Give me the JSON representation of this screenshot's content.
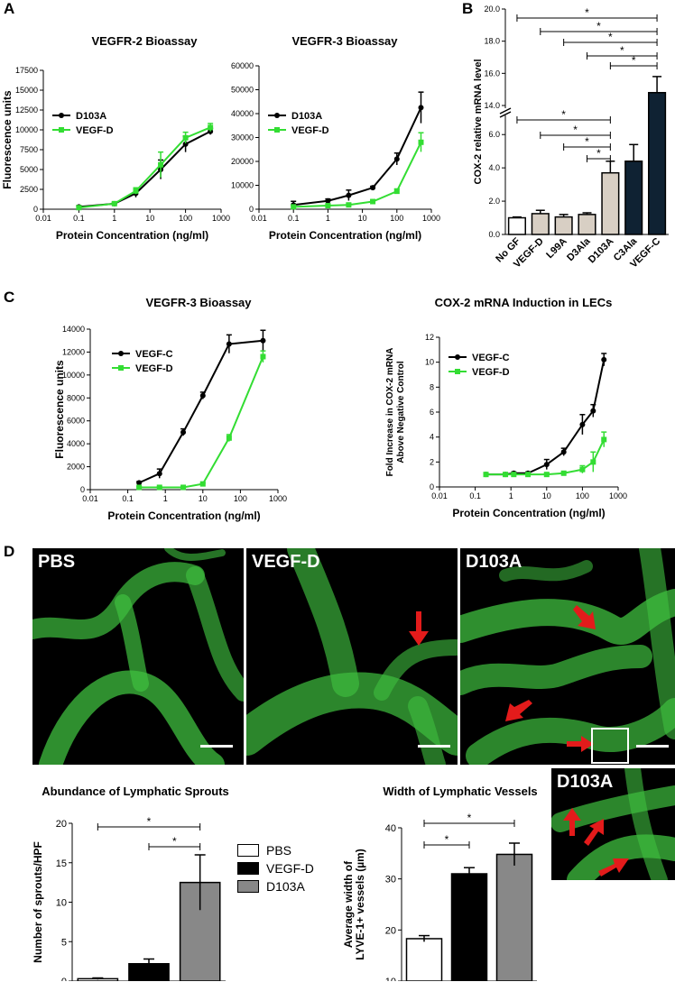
{
  "panel_labels": {
    "a": "A",
    "b": "B",
    "c": "C",
    "d": "D"
  },
  "chart_data": [
    {
      "id": "a1",
      "type": "line",
      "title": "VEGFR-2 Bioassay",
      "xlabel": "Protein Concentration (ng/ml)",
      "ylabel": "Fluorescence units",
      "xscale": "log",
      "xlim": [
        0.01,
        1000
      ],
      "ylim": [
        0,
        17500
      ],
      "xticks": [
        "0.01",
        "0.1",
        "1",
        "10",
        "100",
        "1000"
      ],
      "yticks": [
        "0",
        "2500",
        "5000",
        "7500",
        "10000",
        "12500",
        "15000",
        "17500"
      ],
      "legend": "top-left",
      "series": [
        {
          "name": "D103A",
          "color": "#000000",
          "marker": "circle",
          "x": [
            0.1,
            1,
            4,
            20,
            100,
            500
          ],
          "y": [
            300,
            700,
            2000,
            5000,
            8200,
            9800
          ],
          "err": [
            150,
            150,
            500,
            1200,
            1000,
            400
          ]
        },
        {
          "name": "VEGF-D",
          "color": "#33dd33",
          "marker": "square",
          "x": [
            0.1,
            1,
            4,
            20,
            100,
            500
          ],
          "y": [
            200,
            700,
            2300,
            5600,
            9000,
            10300
          ],
          "err": [
            100,
            150,
            400,
            1600,
            700,
            500
          ]
        }
      ]
    },
    {
      "id": "a2",
      "type": "line",
      "title": "VEGFR-3 Bioassay",
      "xlabel": "Protein Concentration (ng/ml)",
      "ylabel": "",
      "xscale": "log",
      "xlim": [
        0.01,
        1000
      ],
      "ylim": [
        0,
        60000
      ],
      "xticks": [
        "0.01",
        "0.1",
        "1",
        "10",
        "100",
        "1000"
      ],
      "yticks": [
        "0",
        "10000",
        "20000",
        "30000",
        "40000",
        "50000",
        "60000"
      ],
      "legend": "top-left",
      "series": [
        {
          "name": "D103A",
          "color": "#000000",
          "marker": "circle",
          "x": [
            0.1,
            1,
            4,
            20,
            100,
            500
          ],
          "y": [
            1800,
            3500,
            5800,
            9000,
            21000,
            42500
          ],
          "err": [
            1500,
            800,
            2200,
            600,
            2500,
            6500
          ]
        },
        {
          "name": "VEGF-D",
          "color": "#33dd33",
          "marker": "square",
          "x": [
            0.1,
            1,
            4,
            20,
            100,
            500
          ],
          "y": [
            1000,
            1500,
            1800,
            3200,
            7500,
            28000
          ],
          "err": [
            500,
            500,
            600,
            500,
            1000,
            4000
          ]
        }
      ]
    },
    {
      "id": "b",
      "type": "bar",
      "title": "",
      "ylabel": "COX-2 relative mRNA level",
      "categories": [
        "No GF",
        "VEGF-D",
        "L99A",
        "D3Ala",
        "D103A",
        "C3Ala",
        "VEGF-C"
      ],
      "values": [
        1.0,
        1.25,
        1.05,
        1.2,
        3.7,
        4.4,
        14.8
      ],
      "errors": [
        0.05,
        0.2,
        0.15,
        0.1,
        0.7,
        1.0,
        1.0
      ],
      "colors": [
        "#ffffff",
        "#d8cfc4",
        "#d8cfc4",
        "#d8cfc4",
        "#d8cfc4",
        "#0f2233",
        "#0f2233"
      ],
      "yaxis_break": [
        7,
        12
      ],
      "yticks": [
        "0.0",
        "2.0",
        "4.0",
        "6.0",
        "14.0",
        "16.0",
        "18.0",
        "20.0"
      ],
      "significance": [
        {
          "from": "No GF",
          "to": "VEGF-C",
          "label": "*"
        },
        {
          "from": "VEGF-D",
          "to": "VEGF-C",
          "label": "*"
        },
        {
          "from": "L99A",
          "to": "VEGF-C",
          "label": "*"
        },
        {
          "from": "D3Ala",
          "to": "VEGF-C",
          "label": "*"
        },
        {
          "from": "D103A",
          "to": "VEGF-C",
          "label": "*"
        },
        {
          "from": "No GF",
          "to": "D103A",
          "label": "*"
        },
        {
          "from": "VEGF-D",
          "to": "D103A",
          "label": "*"
        },
        {
          "from": "L99A",
          "to": "D103A",
          "label": "*"
        },
        {
          "from": "D3Ala",
          "to": "D103A",
          "label": "*"
        }
      ]
    },
    {
      "id": "c1",
      "type": "line",
      "title": "VEGFR-3 Bioassay",
      "xlabel": "Protein Concentration (ng/ml)",
      "ylabel": "Fluorescence units",
      "xscale": "log",
      "xlim": [
        0.01,
        1000
      ],
      "ylim": [
        0,
        14000
      ],
      "xticks": [
        "0.01",
        "0.1",
        "1",
        "10",
        "100",
        "1000"
      ],
      "yticks": [
        "0",
        "2000",
        "4000",
        "6000",
        "8000",
        "10000",
        "12000",
        "14000"
      ],
      "legend": "top-left",
      "series": [
        {
          "name": "VEGF-C",
          "color": "#000000",
          "marker": "circle",
          "x": [
            0.2,
            0.7,
            3,
            10,
            50,
            400
          ],
          "y": [
            600,
            1400,
            5000,
            8200,
            12700,
            13000
          ],
          "err": [
            100,
            400,
            300,
            300,
            800,
            900
          ]
        },
        {
          "name": "VEGF-D",
          "color": "#33dd33",
          "marker": "square",
          "x": [
            0.2,
            0.7,
            3,
            10,
            50,
            400
          ],
          "y": [
            200,
            200,
            200,
            500,
            4500,
            11600
          ],
          "err": [
            50,
            50,
            50,
            80,
            300,
            500
          ]
        }
      ]
    },
    {
      "id": "c2",
      "type": "line",
      "title": "COX-2 mRNA Induction in LECs",
      "xlabel": "Protein Concentration (ng/ml)",
      "ylabel": "Fold Increase in COX-2 mRNA Above Negative Control",
      "xscale": "log",
      "xlim": [
        0.01,
        1000
      ],
      "ylim": [
        0,
        12
      ],
      "xticks": [
        "0.01",
        "0.1",
        "1",
        "10",
        "100",
        "1000"
      ],
      "yticks": [
        "0",
        "2",
        "4",
        "6",
        "8",
        "10",
        "12"
      ],
      "legend": "top-left",
      "series": [
        {
          "name": "VEGF-C",
          "color": "#000000",
          "marker": "circle",
          "x": [
            0.2,
            0.7,
            1.2,
            3,
            10,
            30,
            100,
            200,
            400
          ],
          "y": [
            1.0,
            1.0,
            1.1,
            1.1,
            1.8,
            2.8,
            5.0,
            6.1,
            10.2
          ],
          "err": [
            0.1,
            0.1,
            0.1,
            0.1,
            0.4,
            0.3,
            0.8,
            0.5,
            0.5
          ]
        },
        {
          "name": "VEGF-D",
          "color": "#33dd33",
          "marker": "square",
          "x": [
            0.2,
            0.7,
            1.2,
            3,
            10,
            30,
            100,
            200,
            400
          ],
          "y": [
            1.0,
            1.0,
            1.0,
            1.0,
            1.0,
            1.1,
            1.4,
            2.0,
            3.8
          ],
          "err": [
            0.05,
            0.05,
            0.05,
            0.05,
            0.1,
            0.1,
            0.3,
            0.8,
            0.6
          ]
        }
      ]
    },
    {
      "id": "d1",
      "type": "bar",
      "title": "Abundance of Lymphatic Sprouts",
      "ylabel": "Number of sprouts/HPF",
      "categories": [
        "PBS",
        "VEGF-D",
        "D103A"
      ],
      "values": [
        0.3,
        2.2,
        12.5
      ],
      "errors": [
        0.1,
        0.6,
        3.5
      ],
      "colors": [
        "#ffffff",
        "#000000",
        "#888888"
      ],
      "ylim": [
        0,
        20
      ],
      "yticks": [
        "0",
        "5",
        "10",
        "15",
        "20"
      ],
      "significance": [
        {
          "from": "PBS",
          "to": "D103A",
          "label": "*"
        },
        {
          "from": "VEGF-D",
          "to": "D103A",
          "label": "*"
        }
      ]
    },
    {
      "id": "d2",
      "type": "bar",
      "title": "Width of Lymphatic Vessels",
      "ylabel": "Average width of LYVE-1+ vessels (µm)",
      "categories": [
        "PBS",
        "VEGF-D",
        "D103A"
      ],
      "values": [
        18.3,
        31.0,
        34.8
      ],
      "errors": [
        0.6,
        1.2,
        2.2
      ],
      "colors": [
        "#ffffff",
        "#000000",
        "#888888"
      ],
      "ylim": [
        10,
        40
      ],
      "yticks": [
        "10",
        "20",
        "30",
        "40"
      ],
      "significance": [
        {
          "from": "PBS",
          "to": "D103A",
          "label": "*"
        },
        {
          "from": "PBS",
          "to": "VEGF-D",
          "label": "*"
        }
      ]
    }
  ],
  "legend_d": [
    {
      "name": "PBS",
      "color": "#ffffff"
    },
    {
      "name": "VEGF-D",
      "color": "#000000"
    },
    {
      "name": "D103A",
      "color": "#888888"
    }
  ],
  "micrographs": [
    {
      "label": "PBS"
    },
    {
      "label": "VEGF-D"
    },
    {
      "label": "D103A"
    }
  ],
  "inset": {
    "label": "D103A"
  }
}
